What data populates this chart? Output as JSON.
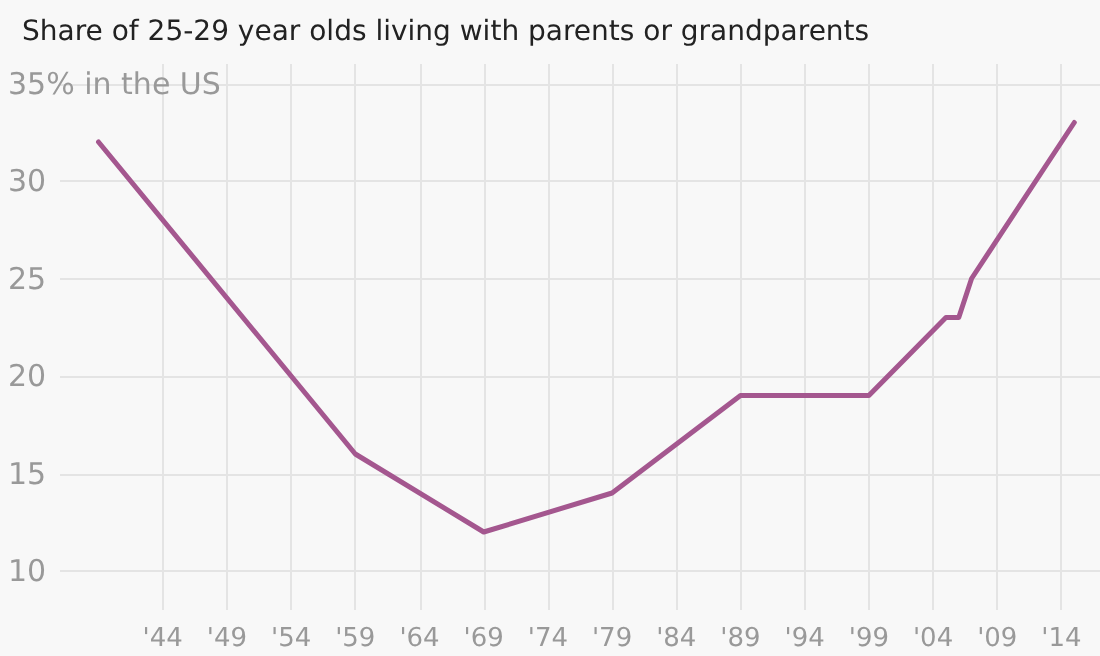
{
  "chart_data": {
    "type": "line",
    "title": "Share of 25-29 year olds living with parents or grandparents",
    "x": [
      1939,
      1959,
      1969,
      1979,
      1989,
      1999,
      2005,
      2006,
      2007,
      2015
    ],
    "xlim": [
      1936,
      2017
    ],
    "ylim": [
      8,
      36
    ],
    "series": [
      {
        "color": "#a4578f",
        "values": [
          32,
          16,
          12,
          14,
          19,
          19,
          23,
          23,
          25,
          33
        ]
      }
    ],
    "xticks": [
      {
        "value": 1944,
        "label": "'44"
      },
      {
        "value": 1949,
        "label": "'49"
      },
      {
        "value": 1954,
        "label": "'54"
      },
      {
        "value": 1959,
        "label": "'59"
      },
      {
        "value": 1964,
        "label": "'64"
      },
      {
        "value": 1969,
        "label": "'69"
      },
      {
        "value": 1974,
        "label": "'74"
      },
      {
        "value": 1979,
        "label": "'79"
      },
      {
        "value": 1984,
        "label": "'84"
      },
      {
        "value": 1989,
        "label": "'89"
      },
      {
        "value": 1994,
        "label": "'94"
      },
      {
        "value": 1999,
        "label": "'99"
      },
      {
        "value": 2004,
        "label": "'04"
      },
      {
        "value": 2009,
        "label": "'09"
      },
      {
        "value": 2014,
        "label": "'14"
      }
    ],
    "yticks": [
      10,
      15,
      20,
      25,
      30,
      {
        "value": 35,
        "label": "35% in the US"
      }
    ],
    "grid": true,
    "marker": "none",
    "line_style": "solid"
  }
}
